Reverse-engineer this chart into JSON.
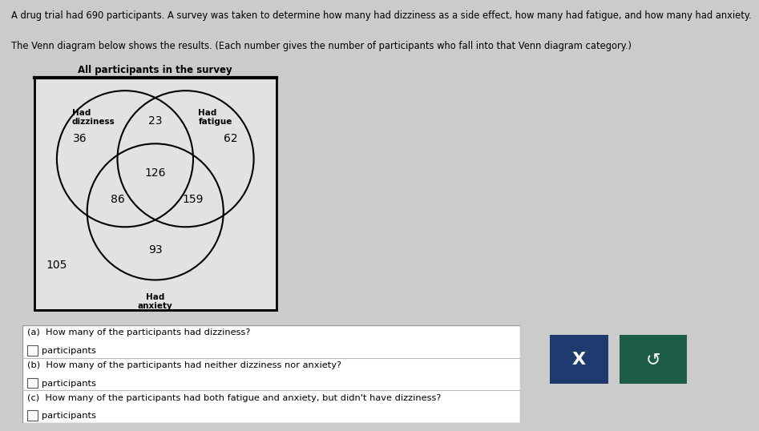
{
  "title_text": "A drug trial had 690 participants. A survey was taken to determine how many had dizziness as a side effect, how many had fatigue, and how many had anxiety.",
  "subtitle_text": "The Venn diagram below shows the results. (Each number gives the number of participants who fall into that Venn diagram category.)",
  "venn_title": "All participants in the survey",
  "page_bg": "#cbcbcb",
  "venn_bg": "#e2e2e2",
  "circle_dizziness_label": "Had\ndizziness",
  "circle_fatigue_label": "Had\nfatigue",
  "circle_anxiety_label": "Had\nanxiety",
  "val_dizziness_only": 36,
  "val_fatigue_only": 62,
  "val_dizziness_fatigue": 23,
  "val_all_three": 126,
  "val_dizziness_anxiety": 86,
  "val_fatigue_anxiety": 159,
  "val_anxiety_only": 93,
  "val_outside": 105,
  "question_a": "(a)  How many of the participants had dizziness?",
  "question_b": "(b)  How many of the participants had neither dizziness nor anxiety?",
  "question_c": "(c)  How many of the participants had both fatigue and anxiety, but didn't have dizziness?",
  "participants_label": "participants",
  "btn_x_color": "#1e3a6e",
  "btn_undo_color": "#1e5c4a"
}
